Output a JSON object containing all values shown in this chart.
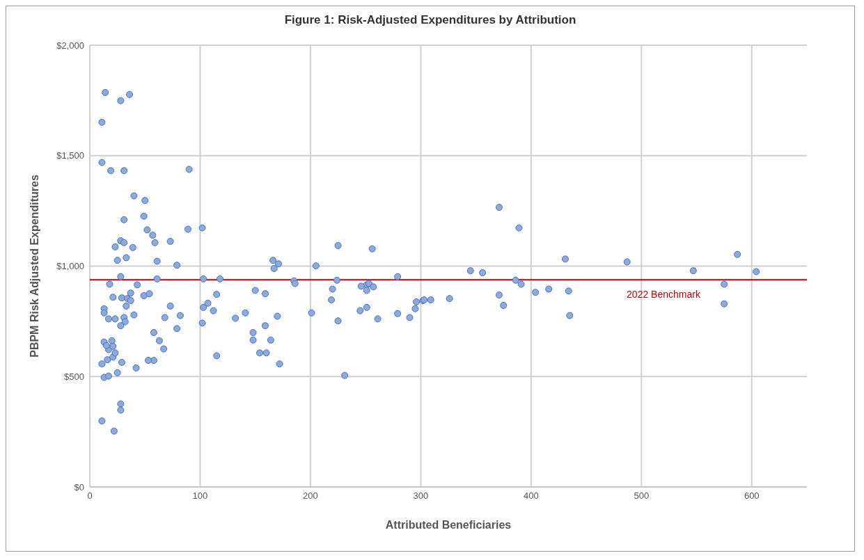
{
  "chart_data": {
    "type": "scatter",
    "title": "Figure 1: Risk-Adjusted Expenditures by Attribution",
    "xlabel": "Attributed Beneficiaries",
    "ylabel": "PBPM Risk Adjusted Expenditures",
    "xlim": [
      0,
      650
    ],
    "xticks": [
      0,
      100,
      200,
      300,
      400,
      500,
      600
    ],
    "ylim": [
      0,
      2000
    ],
    "yticks": [
      {
        "value": 0,
        "label": "$0"
      },
      {
        "value": 500,
        "label": "$500"
      },
      {
        "value": 1000,
        "label": "$1,000"
      },
      {
        "value": 1500,
        "label": "$1,500"
      },
      {
        "value": 2000,
        "label": "$2,000"
      }
    ],
    "grid": true,
    "marker": "circle",
    "ref_lines": [
      {
        "axis": "y",
        "value": 938,
        "label": "2022 Benchmark",
        "color": "#c00000"
      }
    ],
    "series": [
      {
        "color": "#8eaadb",
        "x": [
          14,
          11,
          28,
          36,
          11,
          19,
          31,
          90,
          40,
          50,
          31,
          49,
          52,
          57,
          59,
          73,
          89,
          102,
          28,
          23,
          31,
          39,
          25,
          33,
          61,
          79,
          28,
          61,
          103,
          118,
          18,
          43,
          21,
          29,
          34,
          37,
          37,
          33,
          49,
          54,
          73,
          13,
          13,
          17,
          23,
          31,
          32,
          28,
          40,
          68,
          82,
          79,
          13,
          20,
          17,
          16,
          21,
          11,
          29,
          42,
          58,
          53,
          58,
          63,
          67,
          13,
          17,
          25,
          28,
          28,
          11,
          22,
          15,
          21,
          23,
          225,
          256,
          166,
          171,
          167,
          205,
          185,
          186,
          224,
          279,
          251,
          253,
          257,
          251,
          246,
          220,
          219,
          150,
          159,
          115,
          107,
          103,
          112,
          102,
          132,
          141,
          170,
          201,
          159,
          148,
          148,
          164,
          154,
          160,
          115,
          172,
          225,
          231,
          245,
          251,
          261,
          279,
          290,
          295,
          296,
          302,
          303,
          309,
          326,
          345,
          356,
          371,
          389,
          371,
          375,
          386,
          391,
          404,
          416,
          431,
          434,
          435,
          487,
          547,
          575,
          575,
          587,
          604
        ],
        "values": [
          1786,
          1651,
          1749,
          1777,
          1469,
          1432,
          1432,
          1438,
          1318,
          1297,
          1210,
          1226,
          1164,
          1140,
          1106,
          1112,
          1167,
          1173,
          1115,
          1087,
          1106,
          1084,
          1026,
          1038,
          1022,
          1004,
          952,
          942,
          942,
          942,
          918,
          915,
          859,
          856,
          853,
          878,
          844,
          819,
          866,
          875,
          819,
          807,
          788,
          761,
          761,
          767,
          748,
          730,
          779,
          767,
          776,
          717,
          656,
          662,
          622,
          576,
          588,
          557,
          564,
          539,
          573,
          573,
          699,
          662,
          625,
          496,
          502,
          517,
          376,
          348,
          299,
          253,
          640,
          637,
          607,
          1093,
          1078,
          1026,
          1010,
          989,
          1001,
          933,
          921,
          936,
          952,
          915,
          921,
          906,
          890,
          909,
          896,
          847,
          890,
          875,
          872,
          832,
          813,
          798,
          742,
          764,
          788,
          773,
          788,
          730,
          699,
          665,
          665,
          607,
          607,
          594,
          557,
          752,
          505,
          798,
          813,
          761,
          785,
          767,
          807,
          838,
          844,
          847,
          847,
          853,
          979,
          970,
          1266,
          1173,
          869,
          822,
          936,
          918,
          881,
          896,
          1032,
          887,
          776,
          1019,
          979,
          918,
          829,
          1053,
          975
        ]
      }
    ]
  }
}
